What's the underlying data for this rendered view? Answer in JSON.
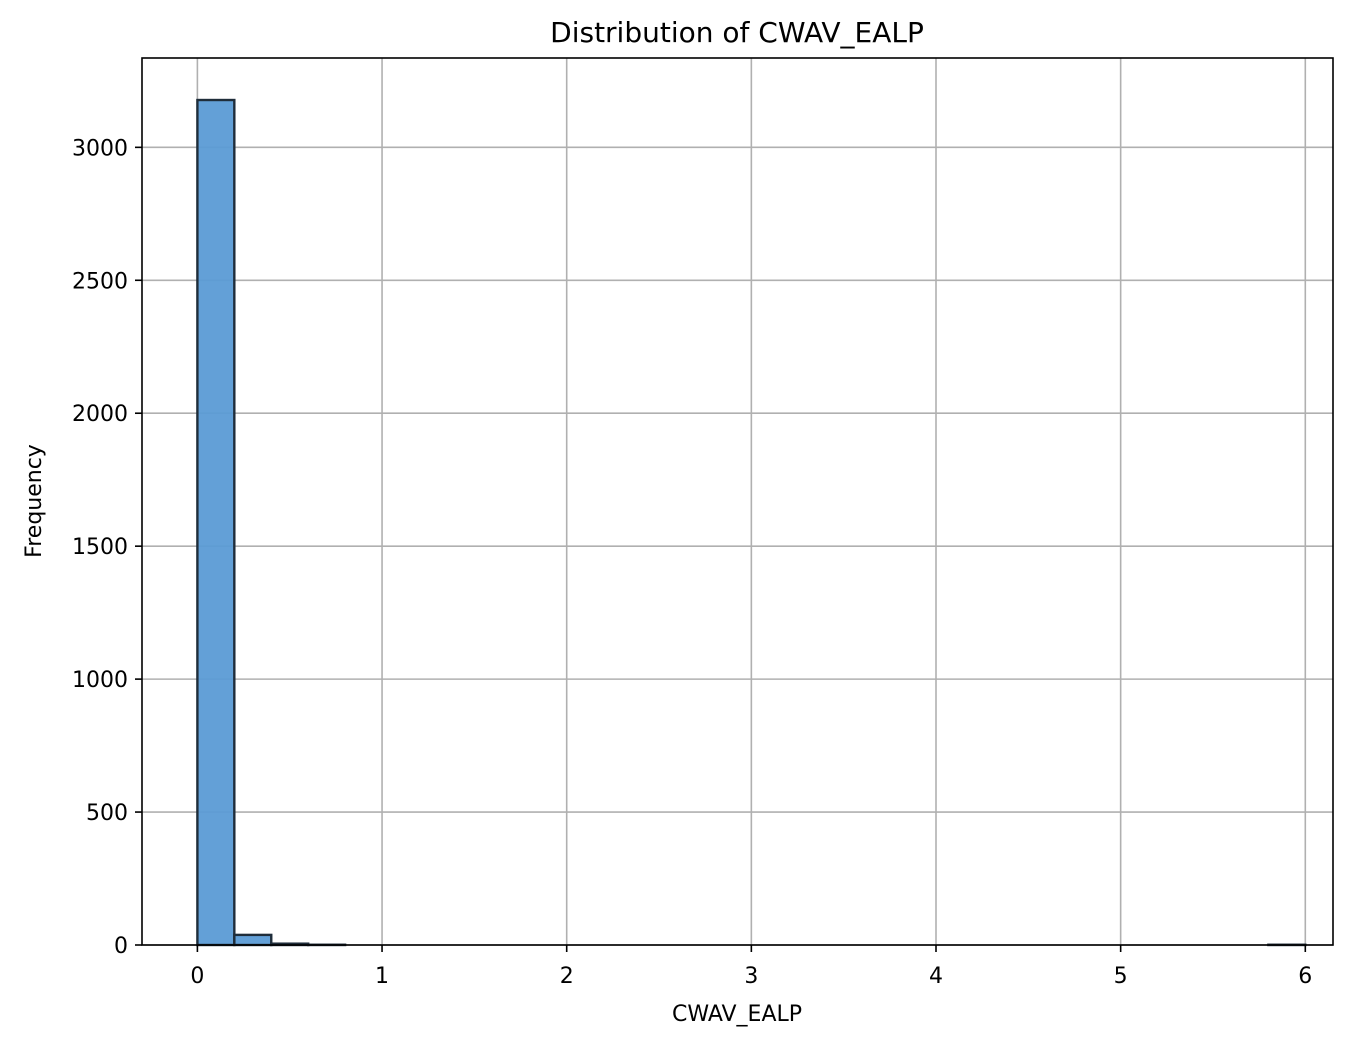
{
  "chart_data": {
    "type": "bar",
    "title": "Distribution of CWAV_EALP",
    "xlabel": "CWAV_EALP",
    "ylabel": "Frequency",
    "xlim": [
      -0.3,
      6.15
    ],
    "ylim": [
      0,
      3336
    ],
    "xticks": [
      0,
      1,
      2,
      3,
      4,
      5,
      6
    ],
    "yticks": [
      0,
      500,
      1000,
      1500,
      2000,
      2500,
      3000
    ],
    "grid": true,
    "bar_color": "#5b9bd5",
    "edge_color": "#1f2d3a",
    "bins": [
      {
        "x0": 0.0,
        "x1": 0.2,
        "count": 3178
      },
      {
        "x0": 0.2,
        "x1": 0.4,
        "count": 38
      },
      {
        "x0": 0.4,
        "x1": 0.6,
        "count": 5
      },
      {
        "x0": 0.6,
        "x1": 0.8,
        "count": 1
      },
      {
        "x0": 0.8,
        "x1": 1.0,
        "count": 0
      },
      {
        "x0": 1.0,
        "x1": 1.2,
        "count": 0
      },
      {
        "x0": 1.2,
        "x1": 1.4,
        "count": 0
      },
      {
        "x0": 1.4,
        "x1": 1.6,
        "count": 0
      },
      {
        "x0": 1.6,
        "x1": 1.8,
        "count": 0
      },
      {
        "x0": 1.8,
        "x1": 2.0,
        "count": 0
      },
      {
        "x0": 2.0,
        "x1": 2.2,
        "count": 0
      },
      {
        "x0": 2.2,
        "x1": 2.4,
        "count": 0
      },
      {
        "x0": 2.4,
        "x1": 2.6,
        "count": 0
      },
      {
        "x0": 2.6,
        "x1": 2.8,
        "count": 0
      },
      {
        "x0": 2.8,
        "x1": 3.0,
        "count": 0
      },
      {
        "x0": 3.0,
        "x1": 3.2,
        "count": 0
      },
      {
        "x0": 3.2,
        "x1": 3.4,
        "count": 0
      },
      {
        "x0": 3.4,
        "x1": 3.6,
        "count": 0
      },
      {
        "x0": 3.6,
        "x1": 3.8,
        "count": 0
      },
      {
        "x0": 3.8,
        "x1": 4.0,
        "count": 0
      },
      {
        "x0": 4.0,
        "x1": 4.2,
        "count": 0
      },
      {
        "x0": 4.2,
        "x1": 4.4,
        "count": 0
      },
      {
        "x0": 4.4,
        "x1": 4.6,
        "count": 0
      },
      {
        "x0": 4.6,
        "x1": 4.8,
        "count": 0
      },
      {
        "x0": 4.8,
        "x1": 5.0,
        "count": 0
      },
      {
        "x0": 5.0,
        "x1": 5.2,
        "count": 0
      },
      {
        "x0": 5.2,
        "x1": 5.4,
        "count": 0
      },
      {
        "x0": 5.4,
        "x1": 5.6,
        "count": 0
      },
      {
        "x0": 5.6,
        "x1": 5.8,
        "count": 0
      },
      {
        "x0": 5.8,
        "x1": 6.0,
        "count": 1
      }
    ]
  }
}
